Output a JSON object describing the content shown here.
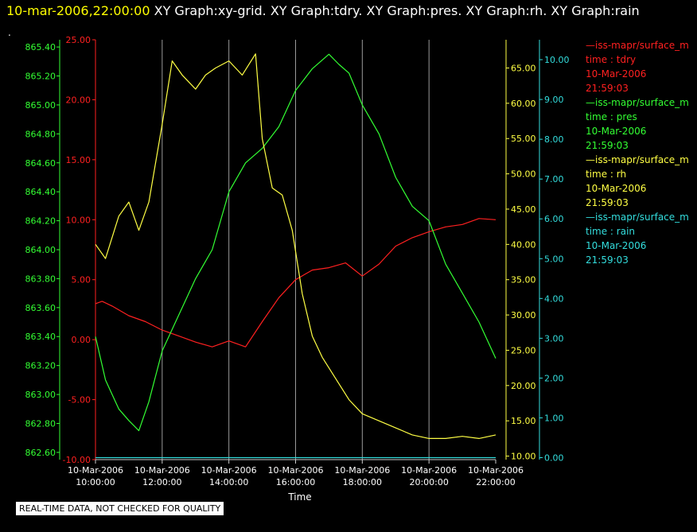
{
  "header": {
    "timestamp": "10-mar-2006,22:00:00",
    "graphs": "XY Graph:xy-grid.  XY Graph:tdry.  XY Graph:pres.  XY Graph:rh.  XY Graph:rain"
  },
  "dot": ".",
  "note": "REAL-TIME DATA, NOT CHECKED FOR QUALITY",
  "legend": [
    {
      "source": "—iss-mapr/surface_m",
      "var": "time : tdry",
      "date": "10-Mar-2006",
      "time": "21:59:03",
      "color": "#ff2020"
    },
    {
      "source": "—iss-mapr/surface_m",
      "var": "time : pres",
      "date": "10-Mar-2006",
      "time": "21:59:03",
      "color": "#33ff33"
    },
    {
      "source": "—iss-mapr/surface_m",
      "var": "time : rh",
      "date": "10-Mar-2006",
      "time": "21:59:03",
      "color": "#ffff44"
    },
    {
      "source": "—iss-mapr/surface_m",
      "var": "time : rain",
      "date": "10-Mar-2006",
      "time": "21:59:03",
      "color": "#33dddd"
    }
  ],
  "chart_data": {
    "type": "line",
    "xlabel": "Time",
    "xlim": [
      10,
      22
    ],
    "x_ticks": [
      {
        "h": 10,
        "date": "10-Mar-2006",
        "time": "10:00:00"
      },
      {
        "h": 12,
        "date": "10-Mar-2006",
        "time": "12:00:00"
      },
      {
        "h": 14,
        "date": "10-Mar-2006",
        "time": "14:00:00"
      },
      {
        "h": 16,
        "date": "10-Mar-2006",
        "time": "16:00:00"
      },
      {
        "h": 18,
        "date": "10-Mar-2006",
        "time": "18:00:00"
      },
      {
        "h": 20,
        "date": "10-Mar-2006",
        "time": "20:00:00"
      },
      {
        "h": 22,
        "date": "10-Mar-2006",
        "time": "22:00:00"
      }
    ],
    "axes": {
      "pres": {
        "color": "#33ff33",
        "ylim": [
          862.55,
          865.45
        ],
        "ticks": [
          "862.60",
          "862.80",
          "863.00",
          "863.20",
          "863.40",
          "863.60",
          "863.80",
          "864.00",
          "864.20",
          "864.40",
          "864.60",
          "864.80",
          "865.00",
          "865.20",
          "865.40"
        ]
      },
      "tdry": {
        "color": "#ff2020",
        "ylim": [
          -10,
          25
        ],
        "ticks": [
          "-10.00",
          "-5.00",
          "0.00",
          "5.00",
          "10.00",
          "15.00",
          "20.00",
          "25.00"
        ]
      },
      "rh": {
        "color": "#ffff44",
        "ylim": [
          9.5,
          69
        ],
        "ticks": [
          "10.00",
          "15.00",
          "20.00",
          "25.00",
          "30.00",
          "35.00",
          "40.00",
          "45.00",
          "50.00",
          "55.00",
          "60.00",
          "65.00"
        ]
      },
      "rain": {
        "color": "#33dddd",
        "ylim": [
          -0.05,
          10.5
        ],
        "ticks": [
          "0.00",
          "1.00",
          "2.00",
          "3.00",
          "4.00",
          "5.00",
          "6.00",
          "7.00",
          "8.00",
          "9.00",
          "10.00"
        ]
      }
    },
    "series": [
      {
        "name": "time : tdry",
        "axis": "tdry",
        "color": "#ff2020",
        "x": [
          10,
          10.2,
          10.5,
          11,
          11.5,
          12,
          12.5,
          13,
          13.5,
          14,
          14.5,
          15,
          15.5,
          16,
          16.5,
          17,
          17.5,
          18,
          18.5,
          19,
          19.5,
          20,
          20.5,
          21,
          21.5,
          22
        ],
        "y": [
          3.0,
          3.2,
          2.8,
          2.0,
          1.5,
          0.8,
          0.3,
          -0.2,
          -0.6,
          -0.1,
          -0.6,
          1.5,
          3.5,
          5.0,
          5.8,
          6.0,
          6.4,
          5.3,
          6.3,
          7.8,
          8.5,
          9.0,
          9.4,
          9.6,
          10.1,
          10.0
        ]
      },
      {
        "name": "time : pres",
        "axis": "pres",
        "color": "#33ff33",
        "x": [
          10,
          10.3,
          10.7,
          11,
          11.3,
          11.6,
          12,
          12.5,
          13,
          13.5,
          14,
          14.5,
          15,
          15.5,
          16,
          16.5,
          17,
          17.3,
          17.6,
          18,
          18.5,
          19,
          19.5,
          20,
          20.5,
          21,
          21.5,
          22
        ],
        "y": [
          863.4,
          863.1,
          862.9,
          862.82,
          862.75,
          862.95,
          863.3,
          863.55,
          863.8,
          864.0,
          864.4,
          864.6,
          864.7,
          864.85,
          865.1,
          865.25,
          865.35,
          865.28,
          865.22,
          865.0,
          864.8,
          864.5,
          864.3,
          864.2,
          863.9,
          863.7,
          863.5,
          863.25
        ]
      },
      {
        "name": "time : rh",
        "axis": "rh",
        "color": "#ffff44",
        "x": [
          10,
          10.3,
          10.7,
          11,
          11.3,
          11.6,
          12,
          12.3,
          12.6,
          13,
          13.3,
          13.6,
          14,
          14.4,
          14.8,
          15,
          15.3,
          15.6,
          15.9,
          16.2,
          16.5,
          16.8,
          17.2,
          17.6,
          18,
          18.5,
          19,
          19.5,
          20,
          20.5,
          21,
          21.5,
          22
        ],
        "y": [
          40,
          38,
          44,
          46,
          42,
          46,
          57,
          66,
          64,
          62,
          64,
          65,
          66,
          64,
          67,
          55,
          48,
          47,
          42,
          33,
          27,
          24,
          21,
          18,
          16,
          15,
          14,
          13,
          12.5,
          12.5,
          12.8,
          12.5,
          13
        ]
      },
      {
        "name": "time : rain",
        "axis": "rain",
        "color": "#33dddd",
        "x": [
          10,
          22
        ],
        "y": [
          0.0,
          0.0
        ]
      }
    ]
  }
}
